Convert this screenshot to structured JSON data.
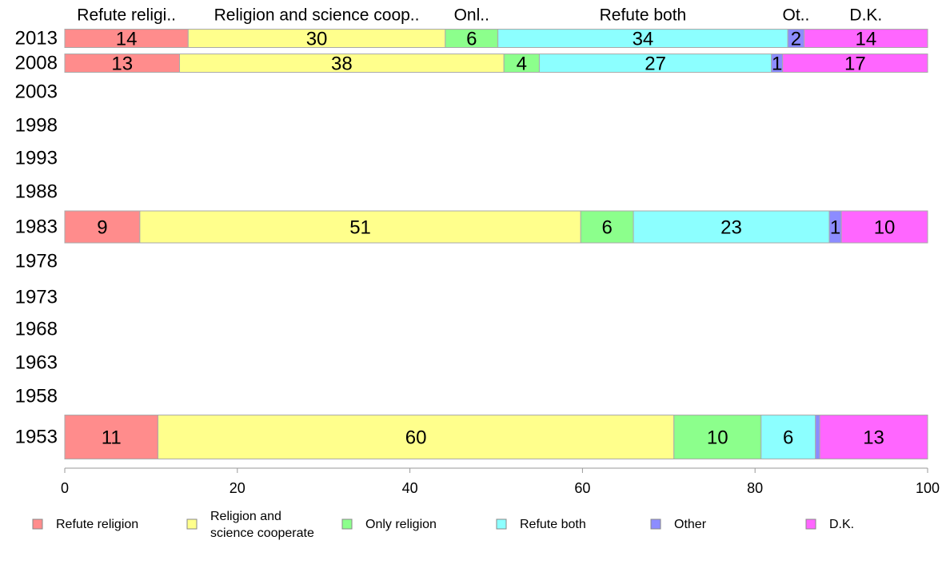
{
  "chart_data": {
    "type": "bar",
    "orientation": "horizontal",
    "stacked": true,
    "xlim": [
      0,
      100
    ],
    "x_ticks": [
      "0",
      "20",
      "40",
      "60",
      "80",
      "100"
    ],
    "categories": [
      "2013",
      "2008",
      "2003",
      "1998",
      "1993",
      "1988",
      "1983",
      "1978",
      "1973",
      "1968",
      "1963",
      "1958",
      "1953"
    ],
    "header_labels": [
      "Refute religi..",
      "Religion and science coop..",
      "Onl..",
      "Refute both",
      "Ot..",
      "D.K."
    ],
    "legend": [
      [
        "Refute religion"
      ],
      [
        "Religion and",
        "science cooperate"
      ],
      [
        "Only religion"
      ],
      [
        "Refute both"
      ],
      [
        "Other"
      ],
      [
        "D.K."
      ]
    ],
    "series": [
      {
        "name": "Refute religion",
        "color": "#FF8C8C",
        "values": [
          14.3,
          13.3,
          null,
          null,
          null,
          null,
          8.7,
          null,
          null,
          null,
          null,
          null,
          10.8
        ]
      },
      {
        "name": "Religion and science cooperate",
        "color": "#FFFF8C",
        "values": [
          29.8,
          37.6,
          null,
          null,
          null,
          null,
          51.1,
          null,
          null,
          null,
          null,
          null,
          59.8
        ]
      },
      {
        "name": "Only religion",
        "color": "#8CFF8C",
        "values": [
          6.1,
          4.1,
          null,
          null,
          null,
          null,
          6.1,
          null,
          null,
          null,
          null,
          null,
          10.1
        ]
      },
      {
        "name": "Refute both",
        "color": "#8CFFFF",
        "values": [
          33.6,
          26.9,
          null,
          null,
          null,
          null,
          22.7,
          null,
          null,
          null,
          null,
          null,
          6.3
        ]
      },
      {
        "name": "Other",
        "color": "#8C8CFF",
        "values": [
          1.9,
          1.3,
          null,
          null,
          null,
          null,
          1.4,
          null,
          null,
          null,
          null,
          null,
          0.5
        ]
      },
      {
        "name": "D.K.",
        "color": "#FF66FF",
        "values": [
          14.3,
          16.8,
          null,
          null,
          null,
          null,
          10.0,
          null,
          null,
          null,
          null,
          null,
          12.5
        ]
      }
    ],
    "segment_labels": [
      [
        "14",
        "30",
        "6",
        "34",
        "2",
        "14"
      ],
      [
        "13",
        "38",
        "4",
        "27",
        "1",
        "17"
      ],
      null,
      null,
      null,
      null,
      [
        "9",
        "51",
        "6",
        "23",
        "1",
        "10"
      ],
      null,
      null,
      null,
      null,
      null,
      [
        "11",
        "60",
        "10",
        "6",
        "",
        "13"
      ]
    ],
    "bar_size_rows": {
      "0": 1,
      "1": 1,
      "6": 2,
      "12": 3
    },
    "grid": false,
    "legend_position": "bottom"
  }
}
